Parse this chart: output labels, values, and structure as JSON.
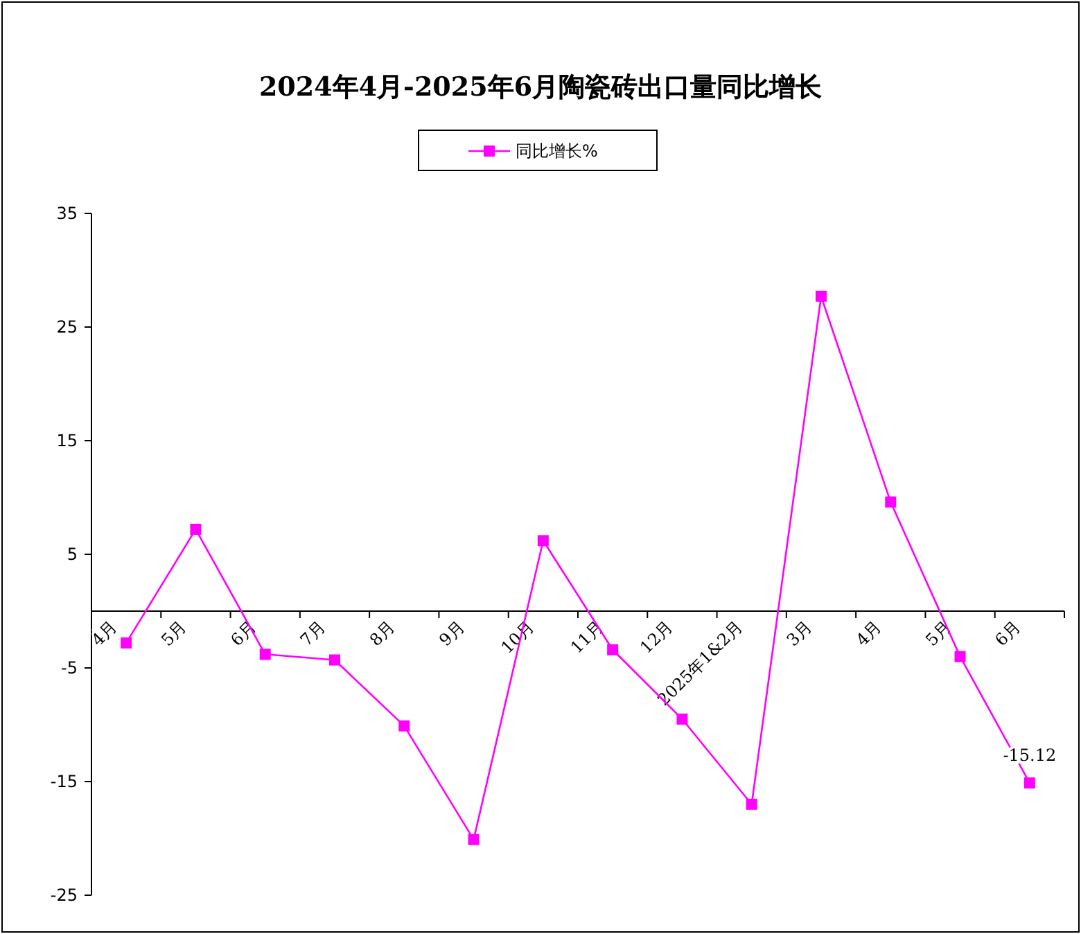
{
  "chart_data": {
    "type": "line",
    "title": "2024年4月-2025年6月陶瓷砖出口量同比增长",
    "categories": [
      "4月",
      "5月",
      "6月",
      "7月",
      "8月",
      "9月",
      "10月",
      "11月",
      "12月",
      "2025年1&2月",
      "3月",
      "4月",
      "5月",
      "6月"
    ],
    "series": [
      {
        "name": "同比增长%",
        "color": "#ff00ff",
        "values": [
          -2.8,
          7.2,
          -3.8,
          -4.3,
          -10.1,
          -20.1,
          6.2,
          -3.4,
          -9.5,
          -17.0,
          27.7,
          9.6,
          -4.0,
          -15.12
        ],
        "value_labels": [
          null,
          null,
          null,
          null,
          null,
          null,
          null,
          null,
          null,
          null,
          null,
          null,
          null,
          "-15.12"
        ]
      }
    ],
    "ylim": [
      -25,
      35
    ],
    "yticks": [
      35,
      25,
      15,
      5,
      -5,
      -15,
      -25
    ],
    "legend": "top",
    "marker": "square",
    "line_style": "solid",
    "grid": false
  }
}
